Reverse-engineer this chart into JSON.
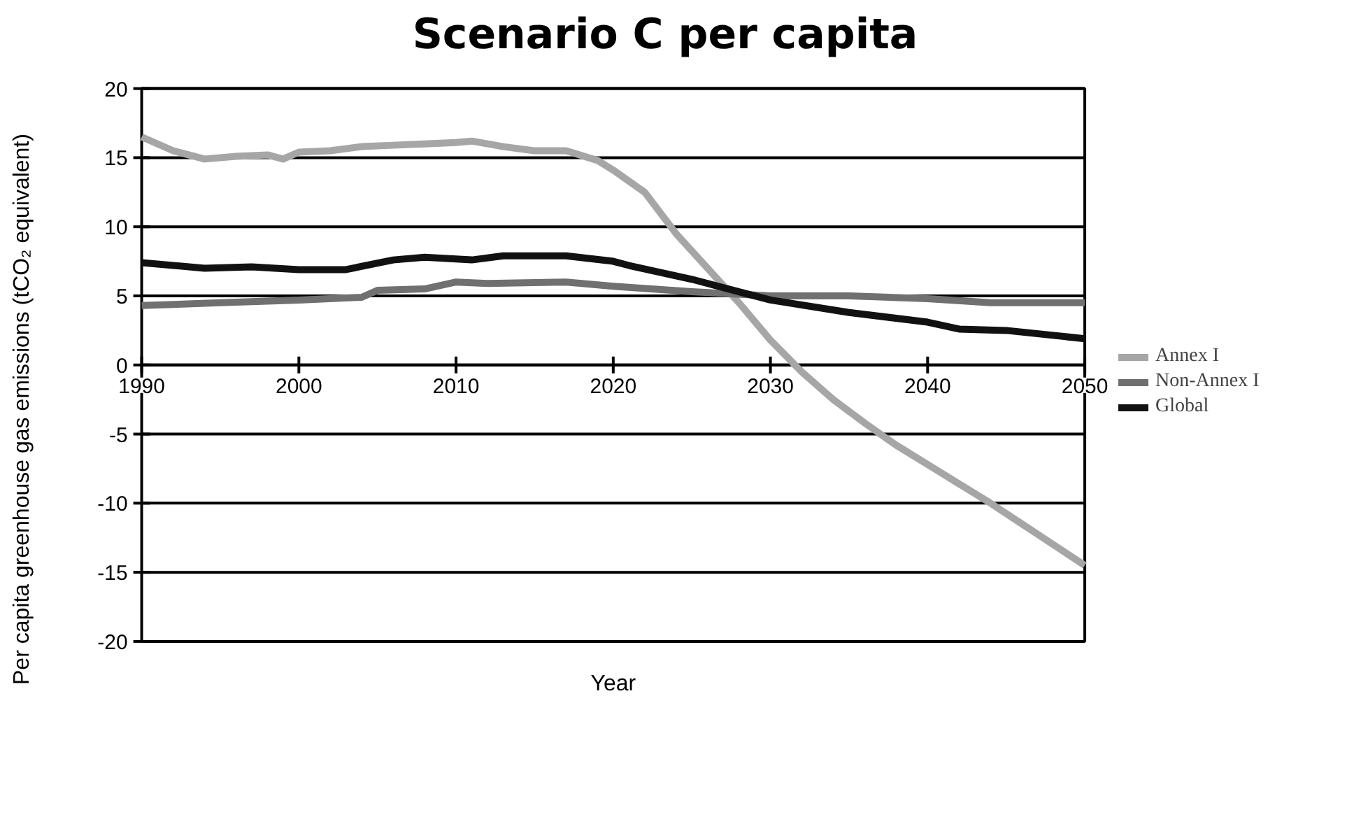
{
  "chart_data": {
    "type": "line",
    "title": "Scenario C per capita",
    "xlabel": "Year",
    "ylabel": "Per capita greenhouse gas emissions (tCO₂ equivalent)",
    "xlim": [
      1990,
      2050
    ],
    "xticks": [
      1990,
      2000,
      2010,
      2020,
      2030,
      2040,
      2050
    ],
    "ylim": [
      -20,
      20
    ],
    "yticks": [
      -20,
      -15,
      -10,
      -5,
      0,
      5,
      10,
      15,
      20
    ],
    "grid": "y",
    "legend": "right",
    "marker": "none",
    "line_style": "solid",
    "series": [
      {
        "name": "Annex I",
        "color": "#a6a6a6",
        "x": [
          1990,
          1992,
          1994,
          1996,
          1998,
          1999,
          2000,
          2002,
          2004,
          2006,
          2008,
          2010,
          2011,
          2013,
          2015,
          2017,
          2019,
          2020,
          2022,
          2024,
          2026,
          2028,
          2030,
          2032,
          2034,
          2036,
          2038,
          2040,
          2042,
          2044,
          2046,
          2048,
          2050
        ],
        "values": [
          16.5,
          15.5,
          14.9,
          15.1,
          15.2,
          14.9,
          15.4,
          15.5,
          15.8,
          15.9,
          16.0,
          16.1,
          16.2,
          15.8,
          15.5,
          15.5,
          14.8,
          14.1,
          12.5,
          9.5,
          7.0,
          4.5,
          1.8,
          -0.5,
          -2.5,
          -4.2,
          -5.8,
          -7.2,
          -8.6,
          -10.0,
          -11.5,
          -13.0,
          -14.5
        ]
      },
      {
        "name": "Non-Annex I",
        "color": "#707070",
        "x": [
          1990,
          1995,
          2000,
          2004,
          2005,
          2008,
          2010,
          2012,
          2017,
          2020,
          2025,
          2030,
          2035,
          2040,
          2044,
          2050
        ],
        "values": [
          4.3,
          4.5,
          4.7,
          4.9,
          5.4,
          5.5,
          6.0,
          5.9,
          6.0,
          5.7,
          5.3,
          5.0,
          5.0,
          4.8,
          4.5,
          4.5
        ]
      },
      {
        "name": "Global",
        "color": "#111111",
        "x": [
          1990,
          1994,
          1997,
          2000,
          2003,
          2006,
          2008,
          2011,
          2013,
          2017,
          2020,
          2021,
          2025,
          2028,
          2030,
          2035,
          2040,
          2042,
          2045,
          2050
        ],
        "values": [
          7.4,
          7.0,
          7.1,
          6.9,
          6.9,
          7.6,
          7.8,
          7.6,
          7.9,
          7.9,
          7.5,
          7.2,
          6.2,
          5.3,
          4.7,
          3.8,
          3.1,
          2.6,
          2.5,
          1.9
        ]
      }
    ]
  }
}
